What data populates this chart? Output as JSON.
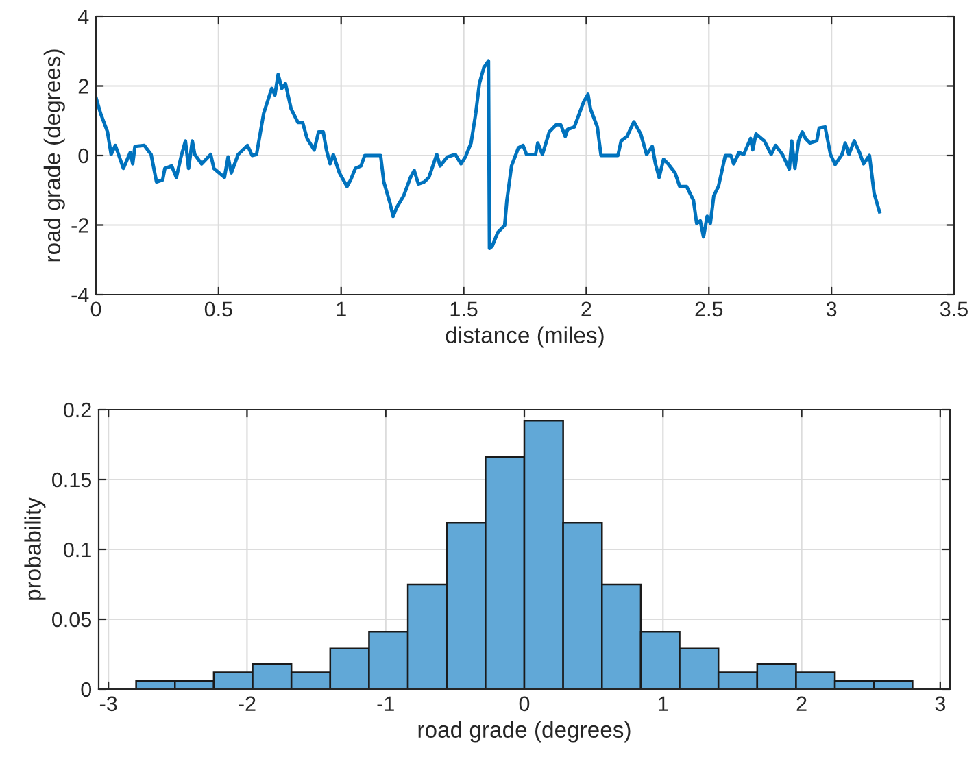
{
  "chart_data": [
    {
      "type": "line",
      "xlabel": "distance (miles)",
      "ylabel": "road grade (degrees)",
      "color": "#0072bd",
      "grid": true,
      "marker": "none",
      "line_style": "solid",
      "xlim": [
        0,
        3.5
      ],
      "ylim": [
        -4,
        4
      ],
      "xticks": [
        0,
        0.5,
        1,
        1.5,
        2,
        2.5,
        3,
        3.5
      ],
      "yticks": [
        -4,
        -2,
        0,
        2,
        4
      ],
      "x": [
        0,
        0.019,
        0.047,
        0.062,
        0.079,
        0.112,
        0.14,
        0.15,
        0.159,
        0.197,
        0.225,
        0.247,
        0.272,
        0.281,
        0.309,
        0.328,
        0.347,
        0.365,
        0.378,
        0.393,
        0.403,
        0.431,
        0.468,
        0.481,
        0.524,
        0.539,
        0.552,
        0.58,
        0.618,
        0.637,
        0.655,
        0.684,
        0.717,
        0.73,
        0.743,
        0.758,
        0.773,
        0.796,
        0.824,
        0.843,
        0.861,
        0.89,
        0.908,
        0.927,
        0.94,
        0.955,
        0.968,
        0.993,
        1.024,
        1.039,
        1.058,
        1.081,
        1.096,
        1.161,
        1.174,
        1.199,
        1.212,
        1.227,
        1.255,
        1.283,
        1.298,
        1.315,
        1.339,
        1.358,
        1.39,
        1.404,
        1.433,
        1.466,
        1.489,
        1.507,
        1.53,
        1.549,
        1.564,
        1.582,
        1.601,
        1.605,
        1.616,
        1.639,
        1.667,
        1.676,
        1.695,
        1.723,
        1.742,
        1.756,
        1.793,
        1.802,
        1.821,
        1.849,
        1.877,
        1.896,
        1.914,
        1.924,
        1.951,
        1.989,
        2.007,
        2.017,
        2.045,
        2.06,
        2.129,
        2.142,
        2.166,
        2.194,
        2.222,
        2.246,
        2.269,
        2.282,
        2.297,
        2.315,
        2.334,
        2.362,
        2.381,
        2.409,
        2.437,
        2.45,
        2.465,
        2.478,
        2.493,
        2.506,
        2.52,
        2.539,
        2.567,
        2.59,
        2.601,
        2.623,
        2.642,
        2.67,
        2.679,
        2.692,
        2.726,
        2.754,
        2.772,
        2.8,
        2.828,
        2.838,
        2.851,
        2.866,
        2.881,
        2.894,
        2.912,
        2.94,
        2.95,
        2.974,
        2.996,
        3.015,
        3.043,
        3.056,
        3.071,
        3.093,
        3.114,
        3.131,
        3.155,
        3.174,
        3.196
      ],
      "values": [
        1.67,
        1.21,
        0.68,
        0.03,
        0.29,
        -0.37,
        0.09,
        -0.24,
        0.26,
        0.29,
        0.03,
        -0.76,
        -0.7,
        -0.37,
        -0.3,
        -0.63,
        -0.04,
        0.42,
        -0.37,
        0.42,
        0.03,
        -0.24,
        0.03,
        -0.37,
        -0.63,
        -0.04,
        -0.5,
        0.03,
        0.29,
        0,
        0.03,
        1.21,
        1.93,
        1.74,
        2.33,
        1.93,
        2.07,
        1.34,
        0.95,
        0.95,
        0.49,
        0.16,
        0.68,
        0.68,
        0.16,
        -0.24,
        0.03,
        -0.5,
        -0.89,
        -0.7,
        -0.37,
        -0.3,
        0,
        0,
        -0.76,
        -1.36,
        -1.75,
        -1.49,
        -1.16,
        -0.63,
        -0.43,
        -0.82,
        -0.76,
        -0.63,
        0.03,
        -0.3,
        -0.04,
        0.03,
        -0.24,
        -0.04,
        0.36,
        1.21,
        2.07,
        2.53,
        2.72,
        -2.67,
        -2.61,
        -2.21,
        -2.01,
        -1.29,
        -0.3,
        0.22,
        0.29,
        0.03,
        0.03,
        0.36,
        0.03,
        0.68,
        0.88,
        0.88,
        0.55,
        0.75,
        0.82,
        1.54,
        1.76,
        1.34,
        0.82,
        0,
        0,
        0.42,
        0.55,
        0.97,
        0.62,
        0.03,
        0.26,
        -0.24,
        -0.63,
        -0.11,
        -0.24,
        -0.5,
        -0.89,
        -0.89,
        -1.29,
        -1.95,
        -1.88,
        -2.34,
        -1.75,
        -1.95,
        -1.16,
        -0.89,
        0,
        0,
        -0.24,
        0.09,
        0.03,
        0.49,
        0.16,
        0.62,
        0.42,
        0.03,
        0.29,
        0.03,
        -0.39,
        0.42,
        -0.37,
        0.42,
        0.68,
        0.49,
        0.36,
        0.42,
        0.79,
        0.82,
        0.03,
        -0.26,
        0.03,
        0.36,
        0.03,
        0.42,
        0.09,
        -0.24,
        0,
        -1.09,
        -1.62
      ]
    },
    {
      "type": "histogram",
      "xlabel": "road grade (degrees)",
      "ylabel": "probability",
      "color": "#61a8d7",
      "grid": true,
      "xlim": [
        -3.07,
        3.07
      ],
      "ylim": [
        0,
        0.2
      ],
      "xticks": [
        -3,
        -2,
        -1,
        0,
        1,
        2,
        3
      ],
      "yticks": [
        0,
        0.05,
        0.1,
        0.15,
        0.2
      ],
      "bins": [
        -2.8,
        -2.52,
        -2.24,
        -1.96,
        -1.68,
        -1.4,
        -1.12,
        -0.84,
        -0.56,
        -0.28,
        0,
        0.28,
        0.56,
        0.84,
        1.12,
        1.4,
        1.68,
        1.96,
        2.24,
        2.52,
        2.8
      ],
      "values": [
        0.006,
        0.006,
        0.012,
        0.018,
        0.012,
        0.029,
        0.041,
        0.075,
        0.119,
        0.166,
        0.192,
        0.119,
        0.075,
        0.041,
        0.029,
        0.012,
        0.018,
        0.012,
        0.006,
        0.006
      ]
    }
  ]
}
